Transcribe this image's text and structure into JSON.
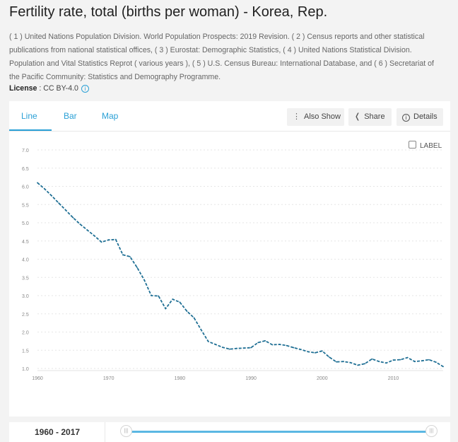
{
  "page": {
    "title": "Fertility rate, total (births per woman) - Korea, Rep.",
    "sources": "( 1 ) United Nations Population Division. World Population Prospects: 2019 Revision. ( 2 ) Census reports and other statistical publications from national statistical offices, ( 3 ) Eurostat: Demographic Statistics, ( 4 ) United Nations Statistical Division. Population and Vital Statistics Reprot ( various years ), ( 5 ) U.S. Census Bureau: International Database, and ( 6 ) Secretariat of the Pacific Community: Statistics and Demography Programme.",
    "license_label": "License",
    "license_value": " : CC BY-4.0",
    "accent_color": "#2aa0d6"
  },
  "tabs": [
    {
      "label": "Line",
      "active": true
    },
    {
      "label": "Bar",
      "active": false
    },
    {
      "label": "Map",
      "active": false
    }
  ],
  "actions": {
    "also_show": "Also Show",
    "share": "Share",
    "details": "Details"
  },
  "label_toggle": "LABEL",
  "range": {
    "label": "1960 - 2017",
    "handle_icon": "grip-icon"
  },
  "chart_data": {
    "type": "line",
    "title": "Fertility rate, total (births per woman) - Korea, Rep.",
    "xlabel": "",
    "ylabel": "",
    "xlim": [
      1960,
      2017
    ],
    "ylim": [
      1.0,
      7.0
    ],
    "yticks": [
      "7.0",
      "6.5",
      "6.0",
      "5.5",
      "5.0",
      "4.5",
      "4.0",
      "3.5",
      "3.0",
      "2.5",
      "2.0",
      "1.5",
      "1.0"
    ],
    "xticks": [
      "1960",
      "1970",
      "1980",
      "1990",
      "2000",
      "2010"
    ],
    "grid": true,
    "line_style": "dashed",
    "series": [
      {
        "name": "Korea, Rep.",
        "color": "#1f6f94",
        "x": [
          1960,
          1961,
          1962,
          1963,
          1964,
          1965,
          1966,
          1967,
          1968,
          1969,
          1970,
          1971,
          1972,
          1973,
          1974,
          1975,
          1976,
          1977,
          1978,
          1979,
          1980,
          1981,
          1982,
          1983,
          1984,
          1985,
          1986,
          1987,
          1988,
          1989,
          1990,
          1991,
          1992,
          1993,
          1994,
          1995,
          1996,
          1997,
          1998,
          1999,
          2000,
          2001,
          2002,
          2003,
          2004,
          2005,
          2006,
          2007,
          2008,
          2009,
          2010,
          2011,
          2012,
          2013,
          2014,
          2015,
          2016,
          2017
        ],
        "values": [
          6.1,
          5.93,
          5.74,
          5.54,
          5.34,
          5.14,
          4.96,
          4.8,
          4.64,
          4.47,
          4.53,
          4.54,
          4.12,
          4.07,
          3.77,
          3.43,
          3.0,
          2.99,
          2.64,
          2.9,
          2.82,
          2.57,
          2.39,
          2.06,
          1.74,
          1.66,
          1.58,
          1.53,
          1.55,
          1.56,
          1.57,
          1.71,
          1.76,
          1.65,
          1.66,
          1.63,
          1.57,
          1.52,
          1.46,
          1.43,
          1.48,
          1.31,
          1.18,
          1.19,
          1.16,
          1.09,
          1.13,
          1.26,
          1.19,
          1.15,
          1.23,
          1.24,
          1.3,
          1.19,
          1.21,
          1.24,
          1.17,
          1.05
        ]
      }
    ]
  }
}
